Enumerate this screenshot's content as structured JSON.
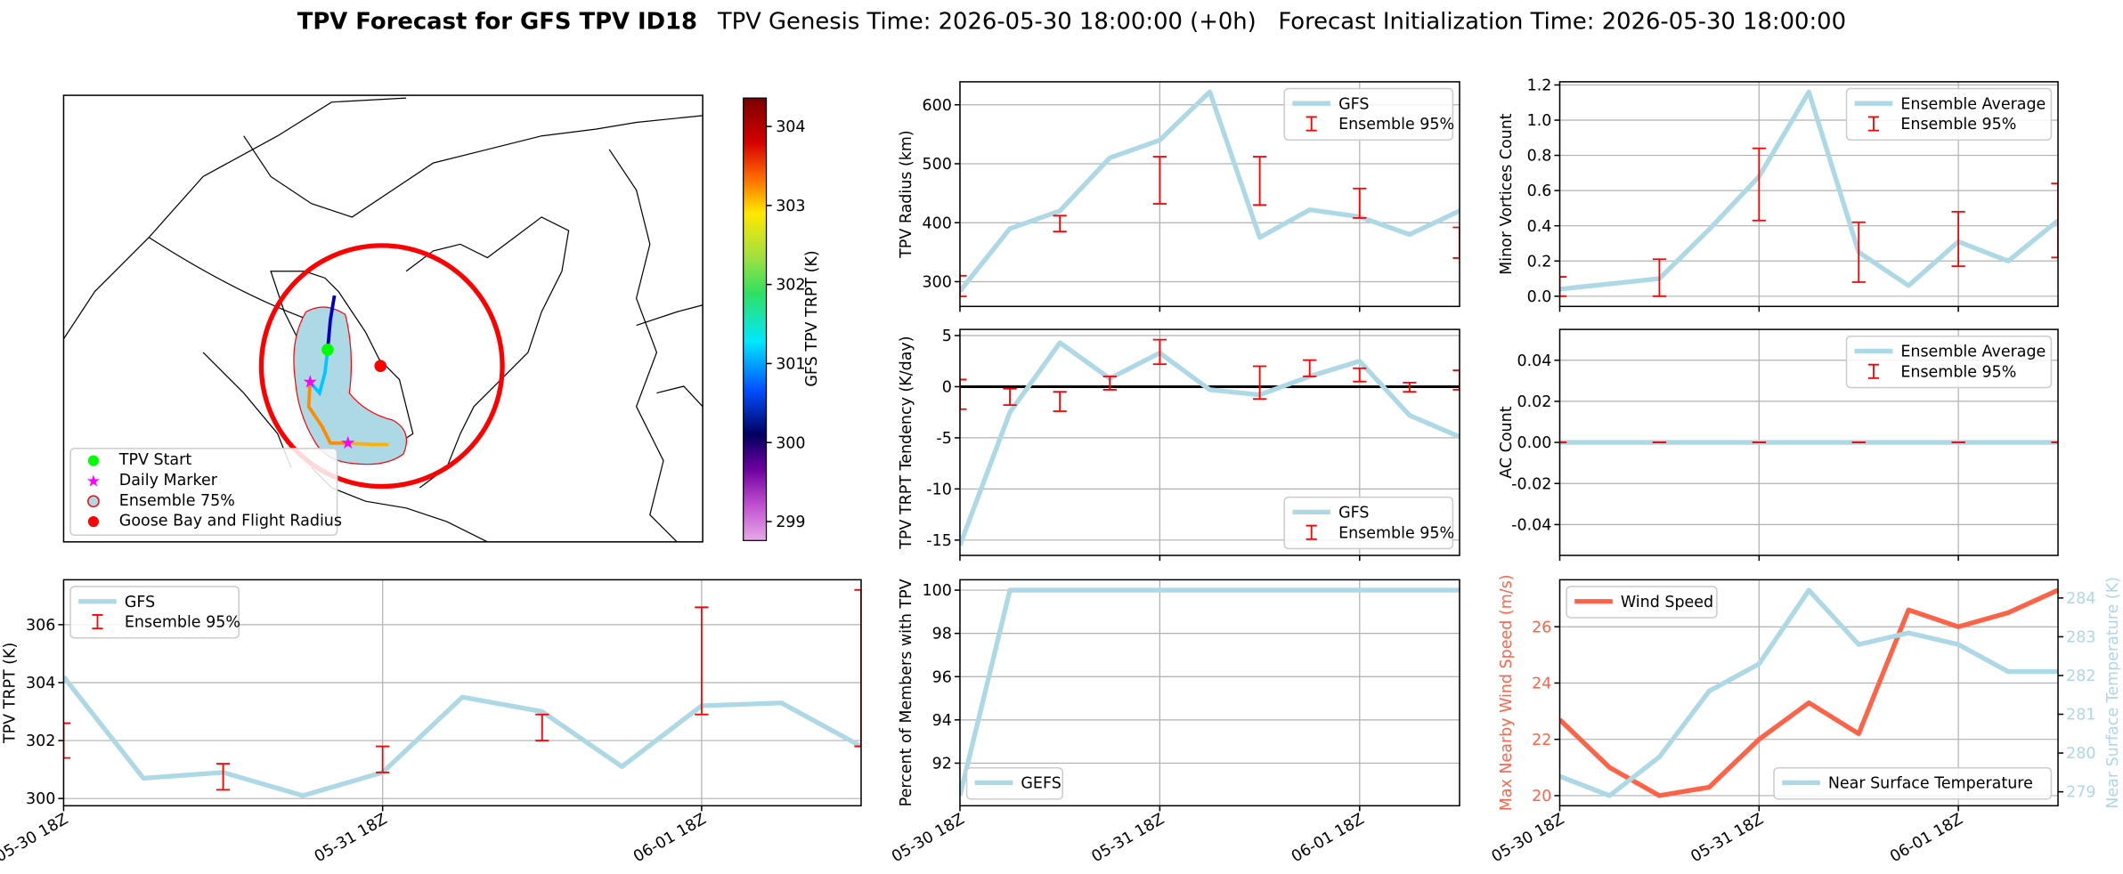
{
  "title": "TPV Forecast for GFS TPV ID18",
  "subtitle": "TPV Genesis Time: 2026-05-30 18:00:00 (+0h)   Forecast Initialization Time: 2026-05-30 18:00:00",
  "map": {
    "legend": [
      "TPV Start",
      "Daily Marker",
      "Ensemble 75%",
      "Goose Bay and Flight Radius"
    ],
    "colorbar": {
      "label": "GFS TPV TRPT (K)",
      "clim": [
        298.76,
        304.36
      ],
      "ticks": [
        299,
        300,
        301,
        302,
        303,
        304
      ]
    }
  },
  "chart_data": [
    {
      "type": "line",
      "ylabel": "TPV Radius (km)",
      "x": [
        0,
        6,
        12,
        18,
        24,
        30,
        36,
        42,
        48,
        54,
        60
      ],
      "xlim": [
        0,
        60
      ],
      "xticks": [
        0,
        24,
        48
      ],
      "xtick_labels": false,
      "ylim": [
        258,
        639
      ],
      "yticks": [
        300,
        400,
        500,
        600
      ],
      "grid": true,
      "legend": "upper right",
      "series": [
        {
          "name": "GFS",
          "color": "#add8e6",
          "values": [
            284,
            390,
            420,
            510,
            540,
            622,
            375,
            422,
            410,
            380,
            420
          ]
        },
        {
          "name": "Ensemble 95%",
          "type": "errorbar",
          "color": "#ff0000",
          "low": [
            275,
            null,
            385,
            null,
            432,
            null,
            430,
            null,
            408,
            null,
            340
          ],
          "high": [
            310,
            null,
            412,
            null,
            512,
            null,
            512,
            null,
            458,
            null,
            392
          ]
        }
      ]
    },
    {
      "type": "line",
      "ylabel": "TPV TRPT Tendency (K/day)",
      "x": [
        0,
        6,
        12,
        18,
        24,
        30,
        36,
        42,
        48,
        54,
        60
      ],
      "xlim": [
        0,
        60
      ],
      "xticks": [
        0,
        24,
        48
      ],
      "xtick_labels": false,
      "ylim": [
        -16.5,
        5.6
      ],
      "yticks": [
        -15,
        -10,
        -5,
        0,
        5
      ],
      "grid": true,
      "legend": "lower right",
      "hline": 0,
      "series": [
        {
          "name": "GFS",
          "color": "#add8e6",
          "values": [
            -15.5,
            -2.5,
            4.3,
            0.8,
            3.3,
            -0.3,
            -0.8,
            1.0,
            2.5,
            -2.8,
            -4.9
          ]
        },
        {
          "name": "Ensemble 95%",
          "type": "errorbar",
          "color": "#ff0000",
          "low": [
            -2.2,
            -1.8,
            -2.4,
            -0.3,
            2.2,
            null,
            -1.2,
            1.0,
            0.5,
            -0.5,
            -0.3
          ],
          "high": [
            0.7,
            -0.2,
            -0.5,
            1.0,
            4.6,
            null,
            2.0,
            2.6,
            1.8,
            0.4,
            1.6
          ]
        }
      ]
    },
    {
      "type": "line",
      "ylabel": "Percent of Members with TPV",
      "x": [
        0,
        6,
        12,
        18,
        24,
        30,
        36,
        42,
        48,
        54,
        60
      ],
      "xlim": [
        0,
        60
      ],
      "xticks": [
        {
          "value": 0,
          "label": "05-30 18Z"
        },
        {
          "value": 24,
          "label": "05-31 18Z"
        },
        {
          "value": 48,
          "label": "06-01 18Z"
        }
      ],
      "xtick_labels": true,
      "ylim": [
        90.03,
        100.48
      ],
      "yticks": [
        92,
        94,
        96,
        98,
        100
      ],
      "grid": true,
      "legend": "lower left",
      "series": [
        {
          "name": "GEFS",
          "color": "#add8e6",
          "values": [
            90.5,
            100,
            100,
            100,
            100,
            100,
            100,
            100,
            100,
            100,
            100
          ]
        }
      ]
    },
    {
      "type": "line",
      "ylabel": "Minor Vortices Count",
      "x": [
        0,
        6,
        12,
        18,
        24,
        30,
        36,
        42,
        48,
        54,
        60
      ],
      "xlim": [
        0,
        60
      ],
      "xticks": [
        0,
        24,
        48
      ],
      "xtick_labels": false,
      "ylim": [
        -0.058,
        1.218
      ],
      "yticks": [
        {
          "value": 0,
          "label": "0.0"
        },
        0.2,
        0.4,
        0.6,
        0.8,
        {
          "value": 1,
          "label": "1.0"
        },
        1.2
      ],
      "grid": true,
      "legend": "upper right",
      "series": [
        {
          "name": "Ensemble Average",
          "color": "#add8e6",
          "values": [
            0.04,
            0.07,
            0.1,
            0.38,
            0.68,
            1.16,
            0.25,
            0.06,
            0.31,
            0.2,
            0.43
          ]
        },
        {
          "name": "Ensemble 95%",
          "type": "errorbar",
          "color": "#ff0000",
          "low": [
            0,
            null,
            0,
            null,
            0.43,
            null,
            0.08,
            null,
            0.17,
            null,
            0.22
          ],
          "high": [
            0.11,
            null,
            0.21,
            null,
            0.84,
            null,
            0.42,
            null,
            0.48,
            null,
            0.64
          ]
        }
      ]
    },
    {
      "type": "line",
      "ylabel": "AC Count",
      "x": [
        0,
        6,
        12,
        18,
        24,
        30,
        36,
        42,
        48,
        54,
        60
      ],
      "xlim": [
        0,
        60
      ],
      "xticks": [
        0,
        24,
        48
      ],
      "xtick_labels": false,
      "ylim": [
        -0.055,
        0.055
      ],
      "yticks": [
        -0.04,
        -0.02,
        {
          "value": 0,
          "label": "0.00"
        },
        0.02,
        0.04
      ],
      "grid": true,
      "legend": "upper right",
      "series": [
        {
          "name": "Ensemble Average",
          "color": "#add8e6",
          "values": [
            0,
            0,
            0,
            0,
            0,
            0,
            0,
            0,
            0,
            0,
            0
          ]
        },
        {
          "name": "Ensemble 95%",
          "type": "errorbar",
          "color": "#ff0000",
          "low": [
            0,
            null,
            0,
            null,
            0,
            null,
            0,
            null,
            0,
            null,
            0
          ],
          "high": [
            0,
            null,
            0,
            null,
            0,
            null,
            0,
            null,
            0,
            null,
            0
          ]
        }
      ]
    },
    {
      "type": "line",
      "ylabel": "Max Nearby Wind Speed (m/s)",
      "y2label": "Near Surface Temperature (K)",
      "x": [
        0,
        6,
        12,
        18,
        24,
        30,
        36,
        42,
        48,
        54,
        60
      ],
      "xlim": [
        0,
        60
      ],
      "xticks": [
        {
          "value": 0,
          "label": "05-30 18Z"
        },
        {
          "value": 24,
          "label": "05-31 18Z"
        },
        {
          "value": 48,
          "label": "06-01 18Z"
        }
      ],
      "xtick_labels": true,
      "ylim": [
        19.64,
        27.67
      ],
      "yticks": [
        20,
        22,
        24,
        26
      ],
      "y2lim": [
        278.64,
        284.47
      ],
      "y2ticks": [
        279,
        280,
        281,
        282,
        283,
        284
      ],
      "grid": true,
      "legend": "upper left",
      "series": [
        {
          "name": "Wind Speed",
          "color": "#ff6347",
          "values": [
            22.7,
            21.0,
            20.0,
            20.3,
            22.0,
            23.3,
            22.2,
            26.6,
            26.0,
            26.5,
            27.3
          ]
        },
        {
          "name": "Near Surface Temperature",
          "color": "#add8e6",
          "axis": "y2",
          "legend": "lower right",
          "values": [
            279.4,
            278.9,
            279.9,
            281.6,
            282.3,
            284.2,
            282.8,
            283.1,
            282.8,
            282.1,
            282.1
          ]
        }
      ]
    },
    {
      "type": "line",
      "ylabel": "TPV TRPT (K)",
      "x": [
        0,
        6,
        12,
        18,
        24,
        30,
        36,
        42,
        48,
        54,
        60
      ],
      "xlim": [
        0,
        60
      ],
      "xticks": [
        {
          "value": 0,
          "label": "05-30 18Z"
        },
        {
          "value": 24,
          "label": "05-31 18Z"
        },
        {
          "value": 48,
          "label": "06-01 18Z"
        }
      ],
      "xtick_labels": true,
      "ylim": [
        299.75,
        307.55
      ],
      "yticks": [
        300,
        302,
        304,
        306
      ],
      "grid": true,
      "legend": "upper left",
      "series": [
        {
          "name": "GFS",
          "color": "#add8e6",
          "values": [
            304.2,
            300.7,
            300.9,
            300.1,
            300.9,
            303.5,
            303.0,
            301.1,
            303.2,
            303.3,
            301.8
          ]
        },
        {
          "name": "Ensemble 95%",
          "type": "errorbar",
          "color": "#ff0000",
          "low": [
            301.4,
            null,
            300.3,
            null,
            300.9,
            null,
            302.0,
            null,
            302.9,
            null,
            301.8
          ],
          "high": [
            302.6,
            null,
            301.2,
            null,
            301.8,
            null,
            302.9,
            null,
            306.6,
            null,
            307.2
          ]
        }
      ]
    }
  ]
}
